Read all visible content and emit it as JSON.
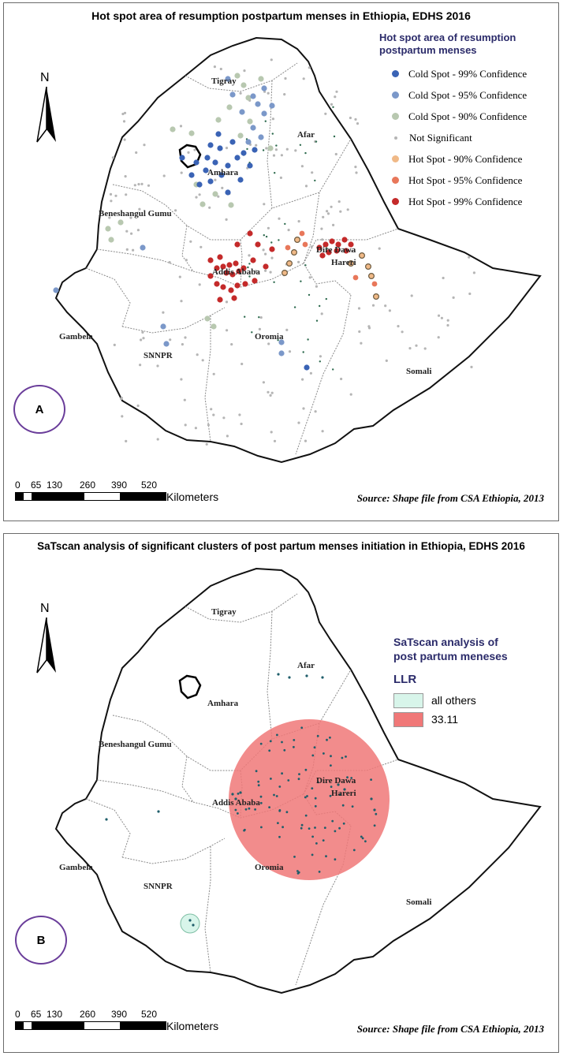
{
  "panel_a": {
    "title": "Hot spot area of resumption postpartum menses in Ethiopia, EDHS 2016",
    "legend_title_1": "Hot spot area of resumption",
    "legend_title_2": "postpartum menses",
    "legend": [
      {
        "label": "Cold Spot - 99% Confidence",
        "color": "#3a63b5",
        "size": 9
      },
      {
        "label": "Cold Spot - 95% Confidence",
        "color": "#7b98c9",
        "size": 9
      },
      {
        "label": "Cold Spot - 90% Confidence",
        "color": "#b8c8b0",
        "size": 9
      },
      {
        "label": "Not Significant",
        "color": "#b5b5b5",
        "size": 4
      },
      {
        "label": "Hot Spot - 90% Confidence",
        "color": "#f0b987",
        "size": 9
      },
      {
        "label": "Hot Spot - 95% Confidence",
        "color": "#e8775a",
        "size": 9
      },
      {
        "label": "Hot Spot - 99% Confidence",
        "color": "#c42a2a",
        "size": 9
      }
    ],
    "regions": [
      "Tigray",
      "Afar",
      "Amhara",
      "Beneshangul Gumu",
      "Addis Ababa",
      "Dire Dawa",
      "Hareri",
      "Gambela",
      "Oromia",
      "SNNPR",
      "Somali"
    ],
    "circle_label": "A",
    "source": "Source: Shape file from  CSA Ethiopia, 2013"
  },
  "panel_b": {
    "title": "SaTscan analysis of significant clusters of post partum menses initiation in Ethiopia, EDHS 2016",
    "legend_title_1": "SaTscan analysis of",
    "legend_title_2": "post partum meneses",
    "legend_sub": "LLR",
    "legend": [
      {
        "label": "all others",
        "color": "#d8f5ea"
      },
      {
        "label": "33.11",
        "color": "#f07878"
      }
    ],
    "regions": [
      "Tigray",
      "Afar",
      "Amhara",
      "Beneshangul Gumu",
      "Addis Ababa",
      "Dire Dawa",
      "Hareri",
      "Gambela",
      "Oromia",
      "SNNPR",
      "Somali"
    ],
    "circle_label": "B",
    "source": "Source: Shape file from  CSA Ethiopia, 2013"
  },
  "north_letter": "N",
  "scale": {
    "ticks": [
      "0",
      "65",
      "130",
      "260",
      "390",
      "520"
    ],
    "unit": "Kilometers"
  }
}
